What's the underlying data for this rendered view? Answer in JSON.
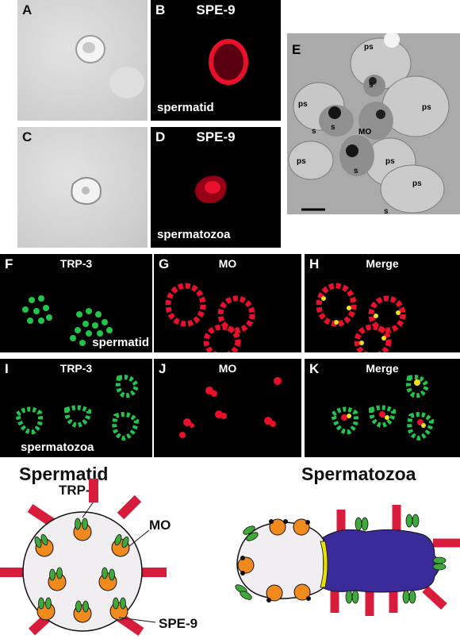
{
  "panels": {
    "A": {
      "label": "A"
    },
    "B": {
      "label": "B",
      "title": "SPE-9",
      "stage": "spermatid"
    },
    "C": {
      "label": "C"
    },
    "D": {
      "label": "D",
      "title": "SPE-9",
      "stage": "spermatozoa"
    },
    "E": {
      "label": "E",
      "tags": {
        "ps": "ps",
        "s": "s",
        "mo": "MO"
      }
    },
    "F": {
      "label": "F",
      "title": "TRP-3",
      "stage": "spermatid"
    },
    "G": {
      "label": "G",
      "title": "MO"
    },
    "H": {
      "label": "H",
      "title": "Merge"
    },
    "I": {
      "label": "I",
      "title": "TRP-3",
      "stage": "spermatozoa"
    },
    "J": {
      "label": "J",
      "title": "MO"
    },
    "K": {
      "label": "K",
      "title": "Merge"
    }
  },
  "diagram": {
    "left_title": "Spermatid",
    "right_title": "Spermatozoa",
    "label_trp3": "TRP-3",
    "label_mo": "MO",
    "label_spe9": "SPE-9",
    "colors": {
      "membrane": "#f0eef0",
      "mo": "#f08a1c",
      "trp3": "#3ea83a",
      "spe9": "#d81c3c",
      "pseudopod": "#3a2a9a",
      "boundary": "#e8e000"
    }
  }
}
